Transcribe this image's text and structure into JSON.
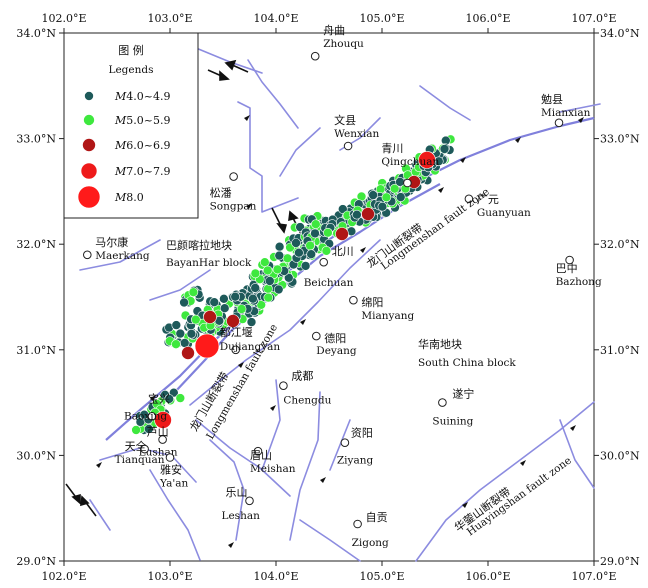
{
  "map": {
    "lon_range": [
      102.0,
      107.0
    ],
    "lat_range": [
      29.0,
      34.0
    ],
    "lon_ticks": [
      "102.0°E",
      "103.0°E",
      "104.0°E",
      "105.0°E",
      "106.0°E",
      "107.0°E"
    ],
    "lat_ticks": [
      "34.0°N",
      "33.0°N",
      "32.0°N",
      "31.0°N",
      "30.0°N",
      "29.0°N"
    ]
  },
  "legend": {
    "title_cn": "图 例",
    "title_en": "Legends",
    "items": [
      {
        "label_italic": "M",
        "label": "4.0~4.9",
        "color": "#1e5a5a"
      },
      {
        "label_italic": "M",
        "label": "5.0~5.9",
        "color": "#3ee83e"
      },
      {
        "label_italic": "M",
        "label": "6.0~6.9",
        "color": "#b01616"
      },
      {
        "label_italic": "M",
        "label": "7.0~7.9",
        "color": "#ee1a1a"
      },
      {
        "label_italic": "M",
        "label": "8.0",
        "color": "#ff1a1a"
      }
    ]
  },
  "cities": [
    {
      "cn": "舟曲",
      "en": "Zhouqu",
      "lon": 104.37,
      "lat": 33.78
    },
    {
      "cn": "文县",
      "en": "Wenxian",
      "lon": 104.68,
      "lat": 32.93
    },
    {
      "cn": "青川",
      "en": "Qingchuan",
      "lon": 105.24,
      "lat": 32.58
    },
    {
      "cn": "勉县",
      "en": "Mianxian",
      "lon": 106.67,
      "lat": 33.15
    },
    {
      "cn": "松潘",
      "en": "Songpan",
      "lon": 103.6,
      "lat": 32.64
    },
    {
      "cn": "广元",
      "en": "Guanyuan",
      "lon": 105.82,
      "lat": 32.43
    },
    {
      "cn": "马尔康",
      "en": "Maerkang",
      "lon": 102.22,
      "lat": 31.9
    },
    {
      "cn": "巴中",
      "en": "Bazhong",
      "lon": 106.77,
      "lat": 31.85
    },
    {
      "cn": "北川",
      "en": "Beichuan",
      "lon": 104.45,
      "lat": 31.83
    },
    {
      "cn": "绵阳",
      "en": "Mianyang",
      "lon": 104.73,
      "lat": 31.47
    },
    {
      "cn": "都江堰",
      "en": "Dujiangyan",
      "lon": 103.62,
      "lat": 31.0
    },
    {
      "cn": "德阳",
      "en": "Deyang",
      "lon": 104.38,
      "lat": 31.13
    },
    {
      "cn": "成都",
      "en": "Chengdu",
      "lon": 104.07,
      "lat": 30.66
    },
    {
      "cn": "宝兴",
      "en": "Baoxing",
      "lon": 102.83,
      "lat": 30.37
    },
    {
      "cn": "芦山",
      "en": "Lushan",
      "lon": 102.93,
      "lat": 30.15
    },
    {
      "cn": "天全",
      "en": "Tianquan",
      "lon": 102.76,
      "lat": 30.06
    },
    {
      "cn": "雅安",
      "en": "Ya'an",
      "lon": 103.0,
      "lat": 29.98
    },
    {
      "cn": "眉山",
      "en": "Meishan",
      "lon": 103.83,
      "lat": 30.04
    },
    {
      "cn": "资阳",
      "en": "Ziyang",
      "lon": 104.65,
      "lat": 30.12
    },
    {
      "cn": "遂宁",
      "en": "Suining",
      "lon": 105.57,
      "lat": 30.5
    },
    {
      "cn": "乐山",
      "en": "Leshan",
      "lon": 103.75,
      "lat": 29.57
    },
    {
      "cn": "自贡",
      "en": "Zigong",
      "lon": 104.77,
      "lat": 29.35
    }
  ],
  "blocks": [
    {
      "cn": "巴颜喀拉地块",
      "en": "BayanHar block"
    },
    {
      "cn": "华南地块",
      "en": "South China block"
    }
  ],
  "faults": [
    {
      "cn": "龙门山断裂带",
      "en": "Longmenshan fault zone"
    },
    {
      "cn": "龙门山断裂带",
      "en": "Longmenshan fault zone"
    },
    {
      "cn": "华蓥山断裂带",
      "en": "Huayingshan fault zone"
    }
  ]
}
